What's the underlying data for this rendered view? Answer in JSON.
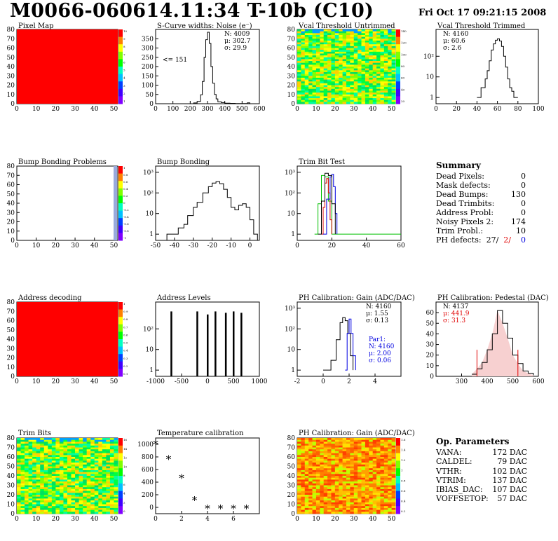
{
  "header": {
    "title": "M0066-060614.11:34 T-10b (C10)",
    "date": "Fri Oct 17 09:21:15 2008"
  },
  "summary": {
    "title": "Summary",
    "rows": [
      {
        "label": "Dead Pixels:",
        "value": "0"
      },
      {
        "label": "Mask defects:",
        "value": "0"
      },
      {
        "label": "Dead Bumps:",
        "value": "130"
      },
      {
        "label": "Dead Trimbits:",
        "value": "0"
      },
      {
        "label": "Address Probl:",
        "value": "0"
      },
      {
        "label": "Noisy Pixels 2:",
        "value": "174"
      },
      {
        "label": "Trim Probl.:",
        "value": "10"
      }
    ],
    "ph_label": "PH defects:",
    "ph_values": [
      "27/",
      "2/",
      "0"
    ],
    "ph_colors": [
      "#000000",
      "#e00000",
      "#0000e0"
    ]
  },
  "op_parameters": {
    "title": "Op. Parameters",
    "rows": [
      {
        "label": "VANA:",
        "value": "172 DAC"
      },
      {
        "label": "CALDEL:",
        "value": "79 DAC"
      },
      {
        "label": "VTHR:",
        "value": "102 DAC"
      },
      {
        "label": "VTRIM:",
        "value": "137 DAC"
      },
      {
        "label": "IBIAS_DAC:",
        "value": "107 DAC"
      },
      {
        "label": "VOFFSETOP:",
        "value": "57 DAC"
      }
    ]
  },
  "chart_data": [
    {
      "id": "pixel-map",
      "type": "heatmap",
      "title": "Pixel Map",
      "xlim": [
        0,
        52
      ],
      "ylim": [
        0,
        80
      ],
      "xticks": [
        0,
        10,
        20,
        30,
        40,
        50
      ],
      "yticks": [
        0,
        10,
        20,
        30,
        40,
        50,
        60,
        70,
        80
      ],
      "fill": "uniform",
      "uniform_color": "#ff0000",
      "palette_ticks": [
        "10",
        "9",
        "8",
        "7",
        "6",
        "5",
        "4",
        "3",
        "2",
        "1"
      ]
    },
    {
      "id": "scurve-noise",
      "type": "line",
      "title": "S-Curve widths: Noise (e⁻)",
      "xlim": [
        0,
        600
      ],
      "ylim": [
        0,
        400
      ],
      "xticks": [
        0,
        100,
        200,
        300,
        400,
        500,
        600
      ],
      "yticks": [
        0,
        50,
        100,
        150,
        200,
        250,
        300,
        350
      ],
      "stats": [
        "N: 4009",
        "μ: 302.7",
        "σ: 29.9"
      ],
      "annotation": "<= 151",
      "x": [
        200,
        220,
        240,
        260,
        270,
        280,
        290,
        300,
        310,
        320,
        330,
        340,
        350,
        360,
        380,
        400,
        430,
        460,
        500,
        530,
        545,
        560
      ],
      "y": [
        0,
        4,
        12,
        48,
        120,
        250,
        345,
        385,
        325,
        200,
        110,
        50,
        26,
        10,
        6,
        3,
        2,
        1,
        1,
        5,
        0,
        0
      ]
    },
    {
      "id": "vcal-untrimmed",
      "type": "heatmap",
      "title": "Vcal Threshold Untrimmed",
      "xlim": [
        0,
        52
      ],
      "ylim": [
        0,
        80
      ],
      "xticks": [
        0,
        10,
        20,
        30,
        40,
        50
      ],
      "yticks": [
        0,
        10,
        20,
        30,
        40,
        50,
        60,
        70,
        80
      ],
      "fill": "noise-green",
      "palette_ticks": [
        "140",
        "120",
        "100",
        "80",
        "60",
        "40",
        "20"
      ]
    },
    {
      "id": "vcal-trimmed",
      "type": "line",
      "title": "Vcal Threshold Trimmed",
      "xlim": [
        0,
        100
      ],
      "ylim": [
        0.5,
        2000
      ],
      "yscale": "log",
      "xticks": [
        0,
        20,
        40,
        60,
        80,
        100
      ],
      "ylog_ticks": [
        "1",
        "10",
        "10²"
      ],
      "stats": [
        "N: 4160",
        "μ: 60.6",
        "σ: 2.6"
      ],
      "x": [
        40,
        44,
        48,
        50,
        52,
        54,
        56,
        58,
        60,
        62,
        64,
        66,
        68,
        70,
        72,
        74,
        76,
        80
      ],
      "y": [
        1,
        3,
        8,
        20,
        60,
        200,
        400,
        600,
        700,
        550,
        300,
        100,
        30,
        8,
        3,
        2,
        1,
        1
      ]
    },
    {
      "id": "bump-problems",
      "type": "heatmap",
      "title": "Bump Bonding Problems",
      "xlim": [
        0,
        52
      ],
      "ylim": [
        0,
        80
      ],
      "xticks": [
        0,
        10,
        20,
        30,
        40,
        50
      ],
      "yticks": [
        0,
        10,
        20,
        30,
        40,
        50,
        60,
        70,
        80
      ],
      "fill": "sparse-edge",
      "palette_ticks": [
        "1",
        "0.8",
        "0.6",
        "0.4",
        "0.2",
        "0",
        "-0.2",
        "-0.4",
        "-0.6",
        "-0.8",
        "-1"
      ]
    },
    {
      "id": "bump-bonding",
      "type": "line",
      "title": "Bump Bonding",
      "xlim": [
        -50,
        5
      ],
      "ylim": [
        0.5,
        2000
      ],
      "yscale": "log",
      "xticks": [
        -50,
        -40,
        -30,
        -20,
        -10,
        0
      ],
      "ylog_ticks": [
        "1",
        "10",
        "10²",
        "10³"
      ],
      "x": [
        -46,
        -44,
        -40,
        -38,
        -35,
        -33,
        -30,
        -28,
        -25,
        -22,
        -20,
        -18,
        -16,
        -14,
        -12,
        -10,
        -8,
        -6,
        -4,
        -2,
        0,
        2,
        4
      ],
      "y": [
        0.5,
        1,
        1,
        2,
        3,
        8,
        20,
        35,
        100,
        200,
        300,
        350,
        280,
        150,
        60,
        20,
        15,
        25,
        30,
        20,
        5,
        1,
        0.5
      ]
    },
    {
      "id": "trim-bit-test",
      "type": "line",
      "title": "Trim Bit Test",
      "xlim": [
        0,
        60
      ],
      "ylim": [
        0.5,
        2000
      ],
      "yscale": "log",
      "xticks": [
        0,
        20,
        40,
        60
      ],
      "ylog_ticks": [
        "1",
        "10",
        "10²",
        "10³"
      ],
      "series": [
        {
          "color": "#00c000",
          "x": [
            10,
            12,
            14,
            16,
            18,
            20,
            60
          ],
          "y": [
            1,
            30,
            700,
            600,
            40,
            1,
            1
          ]
        },
        {
          "color": "#e00000",
          "x": [
            14,
            15,
            16,
            17,
            18,
            19,
            20
          ],
          "y": [
            1,
            20,
            300,
            500,
            100,
            5,
            1
          ]
        },
        {
          "color": "#0000e0",
          "x": [
            15,
            17,
            19,
            20,
            21,
            22,
            23
          ],
          "y": [
            1,
            50,
            600,
            800,
            200,
            10,
            1
          ]
        },
        {
          "color": "#000000",
          "x": [
            12,
            14,
            16,
            18,
            20,
            22
          ],
          "y": [
            1,
            40,
            900,
            700,
            30,
            1
          ]
        }
      ]
    },
    {
      "id": "address-decoding",
      "type": "heatmap",
      "title": "Address decoding",
      "xlim": [
        0,
        52
      ],
      "ylim": [
        0,
        80
      ],
      "xticks": [
        0,
        10,
        20,
        30,
        40,
        50
      ],
      "yticks": [
        0,
        10,
        20,
        30,
        40,
        50,
        60,
        70,
        80
      ],
      "fill": "uniform",
      "uniform_color": "#ff0000",
      "palette_ticks": [
        "1",
        "0.9",
        "0.8",
        "0.7",
        "0.6",
        "0.5",
        "0.4",
        "0.3",
        "0.2",
        "0.1"
      ]
    },
    {
      "id": "address-levels",
      "type": "bar",
      "title": "Address Levels",
      "xlim": [
        -1000,
        1000
      ],
      "ylim": [
        0.5,
        2000
      ],
      "yscale": "log",
      "xticks": [
        -1000,
        -500,
        0,
        500,
        1000
      ],
      "ylog_ticks": [
        "1",
        "10",
        "10²"
      ],
      "x": [
        -700,
        -200,
        0,
        150,
        350,
        500,
        650
      ],
      "y": [
        700,
        700,
        500,
        700,
        600,
        700,
        600
      ]
    },
    {
      "id": "ph-gain",
      "type": "line",
      "title": "PH Calibration: Gain (ADC/DAC)",
      "xlim": [
        -2,
        6
      ],
      "ylim": [
        0.5,
        2000
      ],
      "yscale": "log",
      "xticks": [
        -2,
        0,
        2,
        4
      ],
      "ylog_ticks": [
        "1",
        "10",
        "10²",
        "10³"
      ],
      "stats": [
        "N: 4160",
        "μ: 1.55",
        "σ: 0.13"
      ],
      "fit_stats": [
        "Par1:",
        "N: 4160",
        "μ: 2.00",
        "σ: 0.06"
      ],
      "series": [
        {
          "color": "#000000",
          "x": [
            0,
            0.6,
            1.0,
            1.3,
            1.5,
            1.7,
            1.9,
            2.1,
            2.3
          ],
          "y": [
            1,
            3,
            30,
            200,
            350,
            250,
            60,
            5,
            1
          ]
        },
        {
          "color": "#0000e0",
          "x": [
            1.7,
            1.85,
            2.0,
            2.15,
            2.3,
            2.5
          ],
          "y": [
            1,
            60,
            300,
            60,
            5,
            1
          ]
        }
      ]
    },
    {
      "id": "ph-pedestal",
      "type": "bar",
      "title": "PH Calibration: Pedestal (DAC)",
      "xlim": [
        200,
        600
      ],
      "ylim": [
        0,
        70
      ],
      "xticks": [
        300,
        400,
        500,
        600
      ],
      "yticks": [
        0,
        10,
        20,
        30,
        40,
        50,
        60
      ],
      "stats": [
        "N: 4137",
        "μ: 441.9",
        "σ: 31.3"
      ],
      "fit_range": [
        360,
        520
      ],
      "x": [
        340,
        360,
        380,
        400,
        420,
        440,
        460,
        480,
        500,
        520,
        540,
        560,
        580
      ],
      "y": [
        2,
        7,
        13,
        25,
        40,
        62,
        50,
        36,
        20,
        12,
        5,
        3,
        1
      ]
    },
    {
      "id": "trim-bits",
      "type": "heatmap",
      "title": "Trim Bits",
      "xlim": [
        0,
        52
      ],
      "ylim": [
        0,
        80
      ],
      "xticks": [
        0,
        10,
        20,
        30,
        40,
        50
      ],
      "yticks": [
        0,
        10,
        20,
        30,
        40,
        50,
        60,
        70,
        80
      ],
      "fill": "noise-green",
      "palette_ticks": [
        "16",
        "14",
        "12",
        "10",
        "8",
        "6",
        "4",
        "2",
        "0"
      ]
    },
    {
      "id": "temperature-calibration",
      "type": "scatter",
      "title": "Temperature calibration",
      "xlim": [
        0,
        8
      ],
      "ylim": [
        -100,
        1100
      ],
      "xticks": [
        0,
        2,
        4,
        6
      ],
      "yticks": [
        0,
        200,
        400,
        600,
        800,
        1000
      ],
      "x": [
        0,
        1,
        2,
        3,
        4,
        5,
        6,
        7
      ],
      "y": [
        1000,
        760,
        460,
        110,
        -20,
        -20,
        -20,
        -20
      ]
    },
    {
      "id": "ph-gain-map",
      "type": "heatmap",
      "title": "PH Calibration: Gain (ADC/DAC)",
      "xlim": [
        0,
        52
      ],
      "ylim": [
        0,
        80
      ],
      "xticks": [
        0,
        10,
        20,
        30,
        40,
        50
      ],
      "yticks": [
        0,
        10,
        20,
        30,
        40,
        50,
        60,
        70,
        80
      ],
      "fill": "noise-orange",
      "palette_ticks": [
        "1.6",
        "1.4",
        "1.2",
        "1",
        "0.8",
        "0.6",
        "0.4",
        "0.2"
      ]
    }
  ]
}
